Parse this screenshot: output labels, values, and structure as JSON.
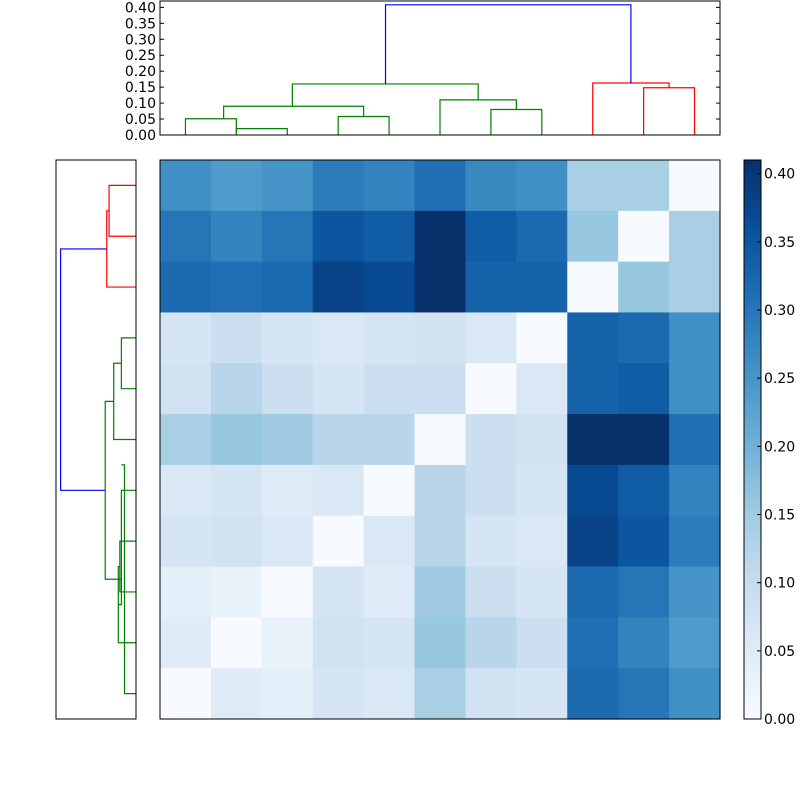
{
  "chart_data": [
    {
      "type": "dendrogram",
      "orientation": "top",
      "ylim": [
        0,
        0.42
      ],
      "yticks": [
        "0.00",
        "0.05",
        "0.10",
        "0.15",
        "0.20",
        "0.25",
        "0.30",
        "0.35",
        "0.40"
      ],
      "ytick_values": [
        0,
        0.05,
        0.1,
        0.15,
        0.2,
        0.25,
        0.3,
        0.35,
        0.4
      ],
      "leaf_count": 11,
      "links": [
        {
          "xl": 0.5,
          "xr": 1.5,
          "hl": 0,
          "hr": 0,
          "h": 0.051,
          "color": "#008000"
        },
        {
          "xl": 1.5,
          "xr": 2.5,
          "hl": 0,
          "hr": 0,
          "h": 0.02,
          "color": "#008000"
        },
        {
          "xl": 3.5,
          "xr": 4.5,
          "hl": 0,
          "hr": 0,
          "h": 0.058,
          "color": "#008000"
        },
        {
          "xl": 1.25,
          "xr": 4.0,
          "hl": 0.051,
          "hr": 0.058,
          "h": 0.09,
          "color": "#008000"
        },
        {
          "xl": 6.5,
          "xr": 7.5,
          "hl": 0,
          "hr": 0,
          "h": 0.08,
          "color": "#008000"
        },
        {
          "xl": 5.5,
          "xr": 7.0,
          "hl": 0,
          "hr": 0.08,
          "h": 0.11,
          "color": "#008000"
        },
        {
          "xl": 2.6,
          "xr": 6.25,
          "hl": 0.09,
          "hr": 0.11,
          "h": 0.16,
          "color": "#008000"
        },
        {
          "xl": 9.5,
          "xr": 10.5,
          "hl": 0,
          "hr": 0,
          "h": 0.148,
          "color": "#ff0000"
        },
        {
          "xl": 8.5,
          "xr": 10.0,
          "hl": 0,
          "hr": 0.148,
          "h": 0.163,
          "color": "#ff0000"
        },
        {
          "xl": 4.43,
          "xr": 9.25,
          "hl": 0.16,
          "hr": 0.163,
          "h": 0.408,
          "color": "#0000ff"
        }
      ]
    },
    {
      "type": "dendrogram",
      "orientation": "left",
      "leaf_count": 11,
      "links": [
        {
          "yt": 0.5,
          "yb": 1.5,
          "dt": 0,
          "db": 0,
          "d": 0.035,
          "color": "#ff0000"
        },
        {
          "yt": 1.0,
          "yb": 2.5,
          "dt": 0.035,
          "db": 0,
          "d": 0.038,
          "color": "#ff0000"
        },
        {
          "yt": 3.5,
          "yb": 4.5,
          "dt": 0,
          "db": 0,
          "d": 0.019,
          "color": "#008000"
        },
        {
          "yt": 4.0,
          "yb": 5.5,
          "dt": 0.019,
          "db": 0,
          "d": 0.029,
          "color": "#008000"
        },
        {
          "yt": 7.5,
          "yb": 8.5,
          "dt": 0,
          "db": 0,
          "d": 0.021,
          "color": "#008000"
        },
        {
          "yt": 8.0,
          "yb": 9.5,
          "dt": 0.021,
          "db": 0,
          "d": 0.023,
          "color": "#008000"
        },
        {
          "yt": 6.5,
          "yb": 8.75,
          "dt": 0,
          "db": 0.023,
          "d": 0.019,
          "color": "#008000"
        },
        {
          "yt": 6.0,
          "yb": 10.5,
          "dt": 0.019,
          "db": 0,
          "d": 0.015,
          "color": "#008000"
        },
        {
          "yt": 4.75,
          "yb": 8.25,
          "dt": 0.029,
          "db": 0.019,
          "d": 0.04,
          "color": "#008000"
        },
        {
          "yt": 1.75,
          "yb": 6.5,
          "dt": 0.038,
          "db": 0.04,
          "d": 0.098,
          "color": "#0000ff"
        }
      ]
    },
    {
      "type": "heatmap",
      "colormap": "Blues",
      "vmin": 0,
      "vmax": 0.41,
      "rows": 11,
      "cols": 11,
      "values": [
        [
          0.26,
          0.24,
          0.25,
          0.29,
          0.28,
          0.31,
          0.27,
          0.26,
          0.14,
          0.14,
          0.0
        ],
        [
          0.3,
          0.28,
          0.3,
          0.35,
          0.34,
          0.41,
          0.34,
          0.32,
          0.16,
          0.0,
          0.14
        ],
        [
          0.32,
          0.31,
          0.32,
          0.38,
          0.37,
          0.41,
          0.33,
          0.33,
          0.0,
          0.16,
          0.14
        ],
        [
          0.07,
          0.09,
          0.07,
          0.06,
          0.07,
          0.08,
          0.06,
          0.0,
          0.33,
          0.32,
          0.26
        ],
        [
          0.08,
          0.12,
          0.09,
          0.07,
          0.09,
          0.09,
          0.0,
          0.06,
          0.33,
          0.34,
          0.26
        ],
        [
          0.14,
          0.16,
          0.15,
          0.12,
          0.12,
          0.0,
          0.09,
          0.08,
          0.41,
          0.41,
          0.31
        ],
        [
          0.06,
          0.07,
          0.05,
          0.06,
          0.0,
          0.12,
          0.09,
          0.07,
          0.37,
          0.34,
          0.28
        ],
        [
          0.07,
          0.08,
          0.06,
          0.0,
          0.06,
          0.12,
          0.07,
          0.06,
          0.38,
          0.35,
          0.29
        ],
        [
          0.04,
          0.03,
          0.0,
          0.07,
          0.05,
          0.15,
          0.09,
          0.07,
          0.32,
          0.3,
          0.25
        ],
        [
          0.05,
          0.0,
          0.03,
          0.08,
          0.07,
          0.16,
          0.12,
          0.09,
          0.31,
          0.28,
          0.24
        ],
        [
          0.0,
          0.05,
          0.04,
          0.07,
          0.06,
          0.14,
          0.08,
          0.07,
          0.32,
          0.3,
          0.26
        ]
      ]
    },
    {
      "type": "colorbar",
      "vmin": 0,
      "vmax": 0.41,
      "ticks": [
        "0.00",
        "0.05",
        "0.10",
        "0.15",
        "0.20",
        "0.25",
        "0.30",
        "0.35",
        "0.40"
      ],
      "tick_values": [
        0,
        0.05,
        0.1,
        0.15,
        0.2,
        0.25,
        0.3,
        0.35,
        0.4
      ]
    }
  ]
}
